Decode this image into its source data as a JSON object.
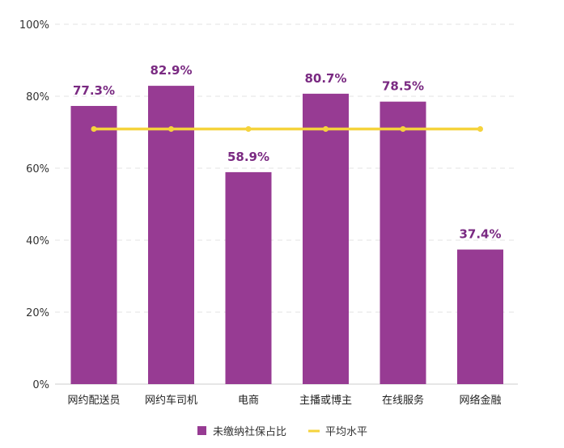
{
  "chart_data": {
    "type": "bar",
    "categories": [
      "网约配送员",
      "网约车司机",
      "电商",
      "主播或博主",
      "在线服务",
      "网络金融"
    ],
    "series": [
      {
        "name": "未缴纳社保占比",
        "type": "bar",
        "values": [
          77.3,
          82.9,
          58.9,
          80.7,
          78.5,
          37.4
        ],
        "color": "#973b93"
      },
      {
        "name": "平均水平",
        "type": "line",
        "values": [
          70.9,
          70.9,
          70.9,
          70.9,
          70.9,
          70.9
        ],
        "color": "#f5d33c"
      }
    ],
    "data_labels": [
      "77.3%",
      "82.9%",
      "58.9%",
      "80.7%",
      "78.5%",
      "37.4%"
    ],
    "ylim": [
      0,
      100
    ],
    "yticks": [
      "0%",
      "20%",
      "40%",
      "60%",
      "80%",
      "100%"
    ],
    "ytick_values": [
      0,
      20,
      40,
      60,
      80,
      100
    ],
    "grid": true,
    "legend_position": "bottom",
    "label_color": "#7a2a82"
  }
}
